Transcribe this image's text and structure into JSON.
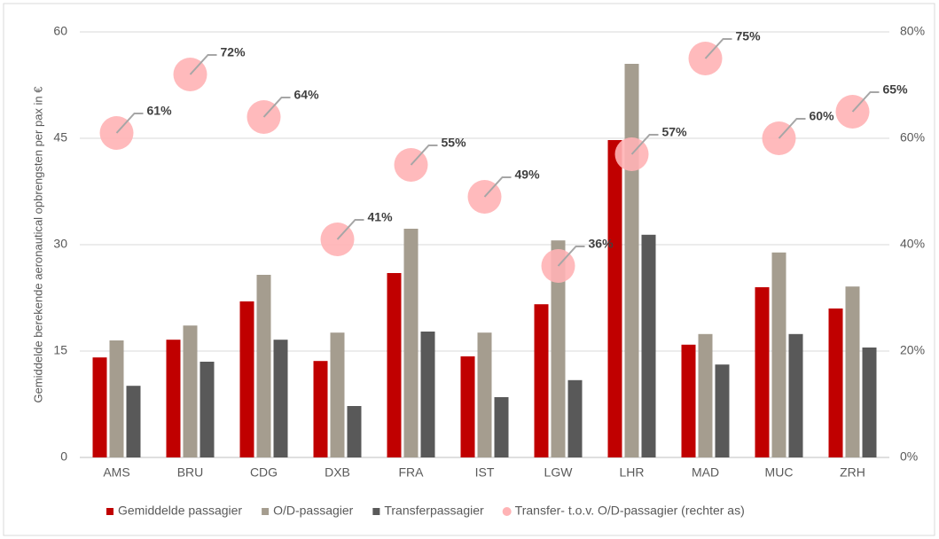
{
  "chart_data": {
    "type": "bar",
    "y_label": "Gemiddelde berekende aeronautical opbrengsten per pax in €",
    "categories": [
      "AMS",
      "BRU",
      "CDG",
      "DXB",
      "FRA",
      "IST",
      "LGW",
      "LHR",
      "MAD",
      "MUC",
      "ZRH"
    ],
    "series": [
      {
        "name": "Gemiddelde passagier",
        "type": "bar",
        "color": "#c00000",
        "values": [
          14.1,
          16.6,
          22,
          13.6,
          26,
          14.25,
          21.6,
          44.75,
          15.9,
          24,
          21
        ]
      },
      {
        "name": "O/D-passagier",
        "type": "bar",
        "color": "#a59d8f",
        "values": [
          16.5,
          18.6,
          25.75,
          17.6,
          32.25,
          17.6,
          30.6,
          55.5,
          17.4,
          28.9,
          24.1
        ]
      },
      {
        "name": "Transferpassagier",
        "type": "bar",
        "color": "#595959",
        "values": [
          10.1,
          13.5,
          16.6,
          7.25,
          17.75,
          8.5,
          10.9,
          31.4,
          13.1,
          17.4,
          15.5
        ]
      },
      {
        "name": "Transfer- t.o.v. O/D-passagier (rechter as)",
        "type": "scatter",
        "axis": "y2",
        "color": "#ffb3b5",
        "values": [
          61,
          72,
          64,
          41,
          55,
          49,
          36,
          57,
          75,
          60,
          65
        ],
        "value_labels": [
          "61%",
          "72%",
          "64%",
          "41%",
          "55%",
          "49%",
          "36%",
          "57%",
          "75%",
          "60%",
          "65%"
        ]
      }
    ],
    "ylim": [
      0,
      60
    ],
    "yticks": [
      0,
      15,
      30,
      45,
      60
    ],
    "y2lim": [
      0,
      80
    ],
    "y2ticks": [
      {
        "value": 0,
        "label": "0%"
      },
      {
        "value": 20,
        "label": "20%"
      },
      {
        "value": 40,
        "label": "40%"
      },
      {
        "value": 60,
        "label": "60%"
      },
      {
        "value": 80,
        "label": "80%"
      }
    ],
    "grid": true,
    "legend": "bottom"
  }
}
